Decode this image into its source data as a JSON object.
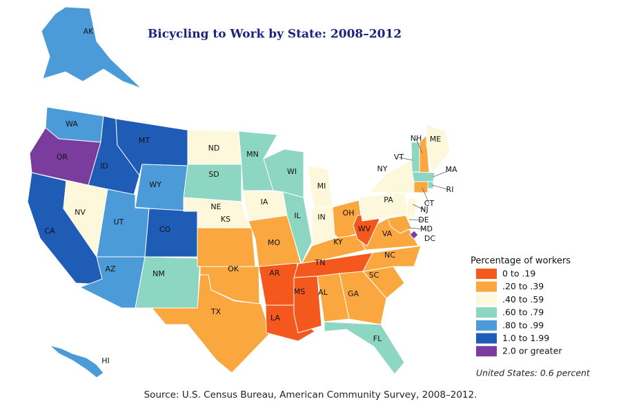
{
  "title": "Bicycling to Work by State: 2008–2012",
  "legend": {
    "title": "Percentage of workers",
    "classes": [
      {
        "label": "0 to .19",
        "color": "#f4581c"
      },
      {
        "label": ".20 to .39",
        "color": "#f9a73e"
      },
      {
        "label": ".40 to .59",
        "color": "#fdf8dc"
      },
      {
        "label": ".60 to .79",
        "color": "#8dd6c2"
      },
      {
        "label": ".80 to .99",
        "color": "#4a9bd8"
      },
      {
        "label": "1.0 to 1.99",
        "color": "#1f5cb6"
      },
      {
        "label": "2.0 or greater",
        "color": "#7a3d9e"
      }
    ]
  },
  "states": [
    {
      "label": "AK",
      "color": "#4a9bd8"
    },
    {
      "label": "HI",
      "color": "#4a9bd8"
    },
    {
      "label": "WA",
      "color": "#4a9bd8"
    },
    {
      "label": "OR",
      "color": "#7a3d9e"
    },
    {
      "label": "CA",
      "color": "#1f5cb6"
    },
    {
      "label": "NV",
      "color": "#fdf8dc"
    },
    {
      "label": "ID",
      "color": "#1f5cb6"
    },
    {
      "label": "MT",
      "color": "#1f5cb6"
    },
    {
      "label": "WY",
      "color": "#4a9bd8"
    },
    {
      "label": "UT",
      "color": "#4a9bd8"
    },
    {
      "label": "CO",
      "color": "#1f5cb6"
    },
    {
      "label": "AZ",
      "color": "#4a9bd8"
    },
    {
      "label": "NM",
      "color": "#8dd6c2"
    },
    {
      "label": "ND",
      "color": "#fdf8dc"
    },
    {
      "label": "SD",
      "color": "#8dd6c2"
    },
    {
      "label": "NE",
      "color": "#fdf8dc"
    },
    {
      "label": "KS",
      "color": "#f9a73e"
    },
    {
      "label": "OK",
      "color": "#f9a73e"
    },
    {
      "label": "TX",
      "color": "#f9a73e"
    },
    {
      "label": "MN",
      "color": "#8dd6c2"
    },
    {
      "label": "IA",
      "color": "#fdf8dc"
    },
    {
      "label": "MO",
      "color": "#f9a73e"
    },
    {
      "label": "AR",
      "color": "#f4581c"
    },
    {
      "label": "LA",
      "color": "#f4581c"
    },
    {
      "label": "WI",
      "color": "#8dd6c2"
    },
    {
      "label": "IL",
      "color": "#8dd6c2"
    },
    {
      "label": "MI",
      "color": "#fdf8dc"
    },
    {
      "label": "IN",
      "color": "#fdf8dc"
    },
    {
      "label": "OH",
      "color": "#f9a73e"
    },
    {
      "label": "KY",
      "color": "#f9a73e"
    },
    {
      "label": "TN",
      "color": "#f4581c"
    },
    {
      "label": "MS",
      "color": "#f4581c"
    },
    {
      "label": "AL",
      "color": "#f9a73e"
    },
    {
      "label": "GA",
      "color": "#f9a73e"
    },
    {
      "label": "FL",
      "color": "#8dd6c2"
    },
    {
      "label": "SC",
      "color": "#f9a73e"
    },
    {
      "label": "NC",
      "color": "#f9a73e"
    },
    {
      "label": "VA",
      "color": "#f9a73e"
    },
    {
      "label": "WV",
      "color": "#f4581c"
    },
    {
      "label": "PA",
      "color": "#fdf8dc"
    },
    {
      "label": "NY",
      "color": "#fdf8dc"
    },
    {
      "label": "VT",
      "color": "#8dd6c2"
    },
    {
      "label": "NH",
      "color": "#f9a73e"
    },
    {
      "label": "ME",
      "color": "#fdf8dc"
    },
    {
      "label": "MA",
      "color": "#8dd6c2"
    },
    {
      "label": "RI",
      "color": "#8dd6c2"
    },
    {
      "label": "CT",
      "color": "#f9a73e"
    },
    {
      "label": "NJ",
      "color": "#fdf8dc"
    },
    {
      "label": "DE",
      "color": "#fdf8dc"
    },
    {
      "label": "MD",
      "color": "#f9a73e"
    },
    {
      "label": "DC",
      "color": "#7a3d9e"
    }
  ],
  "note": "United States: 0.6 percent",
  "source": "Source: U.S. Census Bureau, American Community Survey, 2008–2012."
}
